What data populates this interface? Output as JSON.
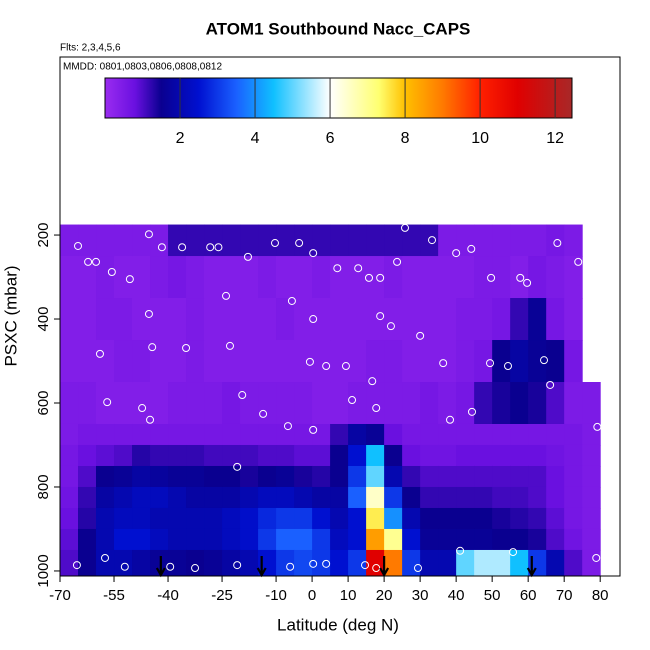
{
  "chart_data": {
    "type": "heatmap",
    "title": "ATOM1 Southbound Nacc_CAPS",
    "subtitle": "Flts: 2,3,4,5,6",
    "annotation": "MMDD: 0801,0803,0806,0808,0812",
    "x_label": "Latitude (deg N)",
    "y_label": "PSXC (mbar)",
    "xlim": [
      -70,
      85.5
    ],
    "ylim": [
      1012,
      -224
    ],
    "xticks": [
      -70,
      -55,
      -40,
      -25,
      -10,
      0,
      10,
      20,
      30,
      40,
      50,
      60,
      70,
      80
    ],
    "yticks": [
      200,
      400,
      600,
      800,
      1000
    ],
    "colorbar": {
      "lim": [
        0,
        12.45
      ],
      "ticks": [
        2,
        4,
        6,
        8,
        10,
        12
      ]
    },
    "colormap": [
      [
        0,
        "#9a2cf0"
      ],
      [
        0.8,
        "#6a10e0"
      ],
      [
        1.5,
        "#0a0090"
      ],
      [
        2.5,
        "#0010d0"
      ],
      [
        3.5,
        "#1a60ff"
      ],
      [
        4.5,
        "#10c0ff"
      ],
      [
        6,
        "#ffffff"
      ],
      [
        7.3,
        "#ffff70"
      ],
      [
        8,
        "#ffc000"
      ],
      [
        9,
        "#ff7a00"
      ],
      [
        10,
        "#ff2000"
      ],
      [
        11,
        "#e00000"
      ],
      [
        12.45,
        "#a82828"
      ]
    ],
    "heatmap": {
      "lat_edges": [
        -70,
        -65,
        -60,
        -55,
        -50,
        -45,
        -40,
        -35,
        -30,
        -25,
        -20,
        -15,
        -10,
        -5,
        0,
        5,
        10,
        15,
        20,
        25,
        30,
        35,
        40,
        45,
        50,
        55,
        60,
        65,
        70,
        75,
        80
      ],
      "pressure_edges": [
        175,
        250,
        350,
        450,
        550,
        650,
        700,
        750,
        800,
        850,
        900,
        950,
        1010
      ],
      "values": [
        [
          0.5,
          0.5,
          0.5,
          0.5,
          0.5,
          0.5,
          1.2,
          1.2,
          1.2,
          1.2,
          1.2,
          1.2,
          1.2,
          1.2,
          1.2,
          1.2,
          1.2,
          1.2,
          1.2,
          1.2,
          1.2,
          0.5,
          0.5,
          0.5,
          0.5,
          0.5,
          0.5,
          0.6,
          0.5,
          null
        ],
        [
          0.4,
          0.4,
          0.5,
          0.4,
          0.4,
          0.5,
          0.6,
          0.5,
          0.4,
          0.4,
          0.4,
          0.5,
          0.4,
          0.4,
          0.5,
          0.4,
          0.4,
          0.4,
          0.5,
          0.4,
          0.4,
          0.4,
          0.4,
          0.5,
          0.5,
          0.4,
          0.6,
          0.5,
          0.4,
          null
        ],
        [
          0.4,
          0.4,
          0.5,
          0.5,
          0.4,
          0.4,
          0.4,
          0.5,
          0.4,
          0.4,
          0.4,
          0.4,
          0.5,
          0.4,
          0.4,
          0.4,
          0.4,
          0.4,
          0.4,
          0.4,
          0.4,
          0.4,
          0.5,
          0.5,
          0.6,
          1.2,
          1.6,
          0.6,
          0.4,
          null
        ],
        [
          0.4,
          0.4,
          0.4,
          0.5,
          0.5,
          0.4,
          0.4,
          0.5,
          0.4,
          0.4,
          0.4,
          0.4,
          0.4,
          0.4,
          0.4,
          0.4,
          0.4,
          0.5,
          0.5,
          0.4,
          0.4,
          0.4,
          0.5,
          0.6,
          1.5,
          1.8,
          1.6,
          1.5,
          0.6,
          null
        ],
        [
          0.5,
          0.5,
          0.4,
          0.4,
          0.4,
          0.4,
          0.5,
          0.5,
          0.5,
          0.6,
          0.5,
          0.5,
          0.5,
          0.5,
          0.4,
          0.4,
          0.5,
          0.5,
          0.5,
          0.5,
          0.6,
          0.5,
          0.6,
          1.2,
          1.4,
          1.5,
          1.4,
          1.0,
          0.5,
          0.5
        ],
        [
          0.5,
          0.6,
          0.6,
          0.6,
          0.6,
          0.6,
          0.6,
          0.6,
          0.6,
          0.6,
          0.6,
          0.6,
          0.6,
          0.6,
          0.6,
          1.2,
          1.8,
          1.6,
          0.8,
          0.6,
          0.6,
          0.6,
          0.6,
          0.6,
          0.6,
          0.6,
          0.6,
          0.6,
          0.6,
          0.5
        ],
        [
          0.6,
          0.8,
          0.9,
          1.0,
          1.3,
          1.2,
          1.2,
          1.2,
          1.1,
          1.1,
          1.1,
          1.0,
          1.0,
          0.9,
          0.9,
          1.5,
          2.5,
          4.5,
          1.5,
          0.8,
          0.7,
          0.7,
          0.8,
          0.8,
          0.8,
          0.8,
          0.8,
          0.7,
          0.6,
          0.5
        ],
        [
          0.6,
          1.0,
          1.5,
          1.6,
          1.8,
          1.7,
          1.6,
          1.6,
          1.5,
          1.5,
          1.4,
          1.5,
          1.6,
          1.4,
          1.3,
          1.5,
          3,
          5,
          2,
          1.2,
          1,
          1,
          1,
          1,
          1,
          1,
          1,
          0.8,
          0.6,
          0.5
        ],
        [
          0.7,
          1.2,
          1.8,
          2,
          2.2,
          2.2,
          2,
          1.8,
          1.8,
          1.8,
          2,
          2.2,
          2.2,
          2,
          1.8,
          1.8,
          3.5,
          6.5,
          3,
          1.5,
          1.2,
          1.2,
          1.2,
          1.2,
          1.1,
          1.1,
          1,
          0.8,
          0.6,
          0.5
        ],
        [
          0.8,
          1.3,
          2,
          2.2,
          2.2,
          2,
          2,
          2,
          2,
          2.2,
          2.4,
          2.8,
          3,
          3,
          2.5,
          2,
          2.5,
          7.5,
          4,
          2,
          1.5,
          1.5,
          1.5,
          1.5,
          1.4,
          1.3,
          1.2,
          0.9,
          0.6,
          0.5
        ],
        [
          0.9,
          1.5,
          2,
          2.5,
          2.5,
          2.2,
          2,
          2,
          2,
          2.2,
          2.4,
          3,
          3.5,
          3.5,
          3,
          2.2,
          2.5,
          8.5,
          7,
          2.5,
          1.6,
          1.6,
          1.6,
          1.6,
          1.5,
          1.5,
          1.4,
          1,
          0.7,
          0.5
        ],
        [
          1,
          1.5,
          2,
          2,
          1.8,
          1.6,
          1.6,
          1.5,
          1.6,
          1.8,
          2,
          2.5,
          3,
          3.2,
          3,
          2.5,
          3,
          11,
          9,
          3,
          2,
          2,
          5,
          5.5,
          5.5,
          4.5,
          3,
          2,
          1,
          0.5
        ]
      ]
    },
    "points": {
      "x": [
        -65,
        -62.2,
        -60,
        -55.6,
        -50.6,
        -45.3,
        -41.7,
        -36.1,
        -28.3,
        -26,
        -17.8,
        -10.3,
        -3.6,
        0.3,
        7,
        12.8,
        15.8,
        18.9,
        23.6,
        25.8,
        33.3,
        40,
        44.2,
        49.7,
        57.8,
        59.7,
        68.1,
        73.9,
        -45.3,
        -23.9,
        -5.6,
        0.3,
        18.9,
        21.9,
        30,
        -58.9,
        -44.4,
        -35,
        -22.8,
        -0.6,
        3.9,
        9.4,
        16.7,
        36.4,
        49.4,
        54.4,
        64.4,
        66.1,
        -56.9,
        -47.2,
        -45,
        -19.4,
        -13.6,
        -6.7,
        0.3,
        11.1,
        17.8,
        38.3,
        44.4,
        -20.8,
        -65.3,
        -57.5,
        -52,
        -39.4,
        -32.5,
        -20.8,
        -6.1,
        0.3,
        3.9,
        14.7,
        17.8,
        29.4,
        41.1,
        55.8,
        78.9,
        79.2
      ],
      "y": [
        226,
        264,
        264,
        288,
        305,
        198,
        229,
        229,
        229,
        229,
        252,
        219,
        219,
        243,
        279,
        279,
        302,
        302,
        264,
        183,
        212,
        243,
        233,
        302,
        302,
        314,
        219,
        264,
        388,
        345,
        357,
        400,
        393,
        417,
        440,
        483,
        467,
        469,
        464,
        502,
        512,
        512,
        548,
        505,
        505,
        512,
        498,
        557,
        598,
        612,
        640,
        581,
        626,
        655,
        664,
        593,
        612,
        640,
        621,
        752,
        986,
        969,
        990,
        990,
        993,
        986,
        990,
        983,
        983,
        986,
        993,
        993,
        952,
        955,
        969,
        657
      ]
    },
    "arrows_x": [
      -42,
      -14,
      20,
      61
    ]
  }
}
